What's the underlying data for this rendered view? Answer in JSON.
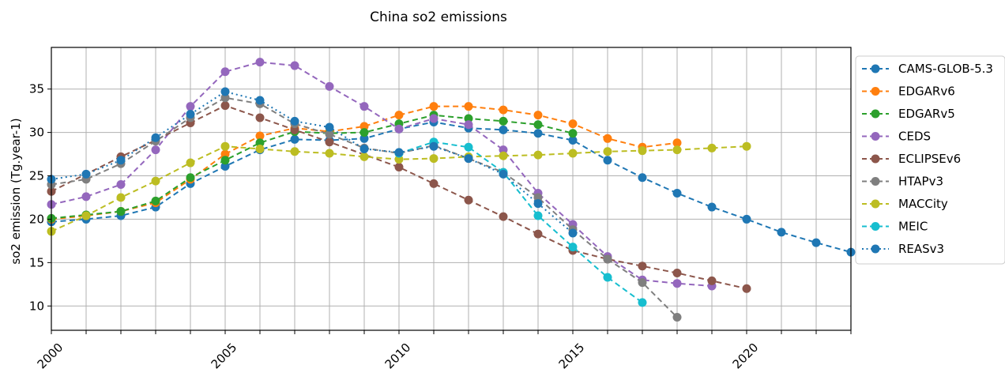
{
  "chart_data": {
    "type": "line",
    "title": "China so2 emissions",
    "xlabel": "",
    "ylabel": "so2 emission (Tg.year-1)",
    "xlim": [
      2000,
      2023
    ],
    "ylim": [
      7.2,
      39.8
    ],
    "xticks": [
      2000,
      2005,
      2010,
      2015,
      2020
    ],
    "yticks": [
      10,
      15,
      20,
      25,
      30,
      35
    ],
    "grid": true,
    "grid_step_x": 1,
    "legend_position": "outside-right",
    "series": [
      {
        "name": "CAMS-GLOB-5.3",
        "color": "#1f77b4",
        "style": "dashed",
        "x": [
          2000,
          2001,
          2002,
          2003,
          2004,
          2005,
          2006,
          2007,
          2008,
          2009,
          2010,
          2011,
          2012,
          2013,
          2014,
          2015,
          2016,
          2017,
          2018,
          2019,
          2020,
          2021,
          2022,
          2023
        ],
        "y": [
          19.7,
          20.0,
          20.4,
          21.4,
          24.1,
          26.1,
          28.0,
          29.2,
          29.1,
          29.3,
          30.4,
          31.2,
          30.5,
          30.3,
          29.9,
          29.1,
          26.8,
          24.8,
          23.0,
          21.4,
          20.0,
          18.5,
          17.3,
          16.2
        ]
      },
      {
        "name": "EDGARv6",
        "color": "#ff7f0e",
        "style": "dashed",
        "x": [
          2000,
          2001,
          2002,
          2003,
          2004,
          2005,
          2006,
          2007,
          2008,
          2009,
          2010,
          2011,
          2012,
          2013,
          2014,
          2015,
          2016,
          2017,
          2018
        ],
        "y": [
          20.0,
          20.4,
          20.9,
          21.9,
          24.6,
          27.5,
          29.6,
          30.5,
          30.1,
          30.7,
          32.0,
          33.0,
          33.0,
          32.6,
          32.0,
          31.0,
          29.3,
          28.3,
          28.8
        ]
      },
      {
        "name": "EDGARv5",
        "color": "#2ca02c",
        "style": "dashed",
        "x": [
          2000,
          2001,
          2002,
          2003,
          2004,
          2005,
          2006,
          2007,
          2008,
          2009,
          2010,
          2011,
          2012,
          2013,
          2014,
          2015
        ],
        "y": [
          20.1,
          20.5,
          20.9,
          22.1,
          24.8,
          26.8,
          28.8,
          30.1,
          29.9,
          30.0,
          31.0,
          32.0,
          31.6,
          31.3,
          30.9,
          29.9
        ]
      },
      {
        "name": "CEDS",
        "color": "#9467bd",
        "style": "dashed",
        "x": [
          2000,
          2001,
          2002,
          2003,
          2004,
          2005,
          2006,
          2007,
          2008,
          2009,
          2010,
          2011,
          2012,
          2013,
          2014,
          2015,
          2016,
          2017,
          2018,
          2019
        ],
        "y": [
          21.7,
          22.6,
          24.0,
          28.0,
          33.0,
          37.0,
          38.1,
          37.7,
          35.3,
          33.0,
          30.4,
          31.6,
          30.9,
          28.0,
          23.0,
          19.4,
          15.7,
          13.0,
          12.6,
          12.3
        ]
      },
      {
        "name": "ECLIPSEv6",
        "color": "#8c564b",
        "style": "dashed",
        "x": [
          2000,
          2002,
          2003,
          2004,
          2005,
          2006,
          2007,
          2008,
          2010,
          2011,
          2012,
          2013,
          2014,
          2015,
          2016,
          2017,
          2018,
          2019,
          2020
        ],
        "y": [
          23.2,
          27.2,
          29.1,
          31.1,
          33.1,
          31.7,
          30.3,
          28.9,
          26.0,
          24.1,
          22.2,
          20.3,
          18.3,
          16.4,
          15.4,
          14.6,
          13.8,
          12.9,
          12.0
        ]
      },
      {
        "name": "HTAPv3",
        "color": "#7f7f7f",
        "style": "dashed",
        "x": [
          2000,
          2001,
          2002,
          2003,
          2004,
          2005,
          2006,
          2007,
          2008,
          2009,
          2010,
          2011,
          2012,
          2013,
          2014,
          2015,
          2016,
          2017,
          2018
        ],
        "y": [
          24.0,
          24.6,
          26.4,
          29.0,
          31.7,
          34.0,
          33.3,
          31.0,
          29.8,
          28.2,
          27.6,
          28.5,
          27.0,
          25.4,
          22.5,
          18.8,
          15.4,
          12.7,
          8.7
        ]
      },
      {
        "name": "MACCity",
        "color": "#bcbd22",
        "style": "dashed",
        "x": [
          2000,
          2001,
          2002,
          2003,
          2004,
          2005,
          2006,
          2007,
          2008,
          2009,
          2010,
          2011,
          2012,
          2013,
          2014,
          2015,
          2016,
          2017,
          2018,
          2019,
          2020
        ],
        "y": [
          18.6,
          20.4,
          22.5,
          24.4,
          26.5,
          28.4,
          28.1,
          27.8,
          27.6,
          27.2,
          26.9,
          27.0,
          27.2,
          27.3,
          27.4,
          27.6,
          27.8,
          27.9,
          28.0,
          28.2,
          28.4
        ]
      },
      {
        "name": "MEIC",
        "color": "#17becf",
        "style": "dashed",
        "x": [
          2010,
          2011,
          2012,
          2013,
          2014,
          2015,
          2016,
          2017
        ],
        "y": [
          27.6,
          28.9,
          28.3,
          25.4,
          20.4,
          16.8,
          13.3,
          10.4
        ]
      },
      {
        "name": "REASv3",
        "color": "#1f77b4",
        "style": "dotted",
        "x": [
          2000,
          2001,
          2002,
          2003,
          2004,
          2005,
          2006,
          2007,
          2008,
          2009,
          2010,
          2011,
          2012,
          2013,
          2014,
          2015
        ],
        "y": [
          24.6,
          25.2,
          26.8,
          29.4,
          32.1,
          34.7,
          33.7,
          31.3,
          30.6,
          28.1,
          27.7,
          28.4,
          27.0,
          25.2,
          21.8,
          18.4
        ]
      }
    ]
  }
}
